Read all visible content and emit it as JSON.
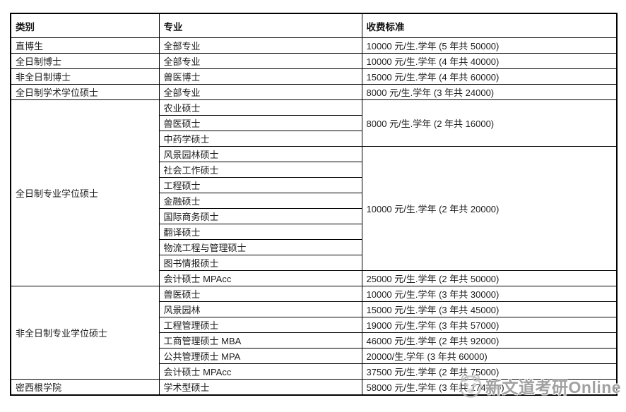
{
  "table": {
    "columns": [
      "类别",
      "专业",
      "收费标准"
    ],
    "rows": [
      {
        "category": "直博生",
        "category_rowspan": 1,
        "major": "全部专业",
        "fee": "10000 元/生.学年 (5 年共 50000)",
        "fee_rowspan": 1
      },
      {
        "category": "全日制博士",
        "category_rowspan": 1,
        "major": "全部专业",
        "fee": "10000 元/生.学年 (4 年共 40000)",
        "fee_rowspan": 1
      },
      {
        "category": "非全日制博士",
        "category_rowspan": 1,
        "major": "兽医博士",
        "fee": "15000 元/生.学年 (4 年共 60000)",
        "fee_rowspan": 1
      },
      {
        "category": "全日制学术学位硕士",
        "category_rowspan": 1,
        "major": "全部专业",
        "fee": "8000 元/生.学年 (3 年共 24000)",
        "fee_rowspan": 1
      },
      {
        "category": "全日制专业学位硕士",
        "category_rowspan": 12,
        "major": "农业硕士",
        "fee": "8000 元/生.学年 (2 年共 16000)",
        "fee_rowspan": 3
      },
      {
        "category": null,
        "major": "兽医硕士",
        "fee": null
      },
      {
        "category": null,
        "major": "中药学硕士",
        "fee": null
      },
      {
        "category": null,
        "major": "风景园林硕士",
        "fee": "10000 元/生.学年 (2 年共 20000)",
        "fee_rowspan": 8
      },
      {
        "category": null,
        "major": "社会工作硕士",
        "fee": null
      },
      {
        "category": null,
        "major": "工程硕士",
        "fee": null
      },
      {
        "category": null,
        "major": "金融硕士",
        "fee": null
      },
      {
        "category": null,
        "major": "国际商务硕士",
        "fee": null
      },
      {
        "category": null,
        "major": "翻译硕士",
        "fee": null
      },
      {
        "category": null,
        "major": "物流工程与管理硕士",
        "fee": null
      },
      {
        "category": null,
        "major": "图书情报硕士",
        "fee": null
      },
      {
        "category": null,
        "major": "会计硕士 MPAcc",
        "fee": "25000 元/生.学年 (2 年共 50000)",
        "fee_rowspan": 1
      },
      {
        "category": "非全日制专业学位硕士",
        "category_rowspan": 6,
        "major": "兽医硕士",
        "fee": "10000 元/生.学年 (3 年共 30000)",
        "fee_rowspan": 1
      },
      {
        "category": null,
        "major": "风景园林",
        "fee": "15000 元/生.学年 (3 年共 45000)",
        "fee_rowspan": 1
      },
      {
        "category": null,
        "major": "工程管理硕士",
        "fee": "19000 元/生.学年 (3 年共 57000)",
        "fee_rowspan": 1
      },
      {
        "category": null,
        "major": "工商管理硕士 MBA",
        "fee": "46000 元/生.学年 (2 年共 92000)",
        "fee_rowspan": 1
      },
      {
        "category": null,
        "major": "公共管理硕士 MPA",
        "fee": "20000/生.学年 (3 年共 60000)",
        "fee_rowspan": 1
      },
      {
        "category": null,
        "major": "会计硕士 MPAcc",
        "fee": "37500 元/生.学年 (2 年共 75000)",
        "fee_rowspan": 1
      },
      {
        "category": "密西根学院",
        "category_rowspan": 1,
        "major": "学术型硕士",
        "fee": "58000 元/生.学年 (3 年共 174000)",
        "fee_rowspan": 1
      }
    ]
  },
  "watermark": {
    "text": "新文道考研Online",
    "logo_icon": "xinwendao-mascot-logo",
    "color": "#949494"
  }
}
